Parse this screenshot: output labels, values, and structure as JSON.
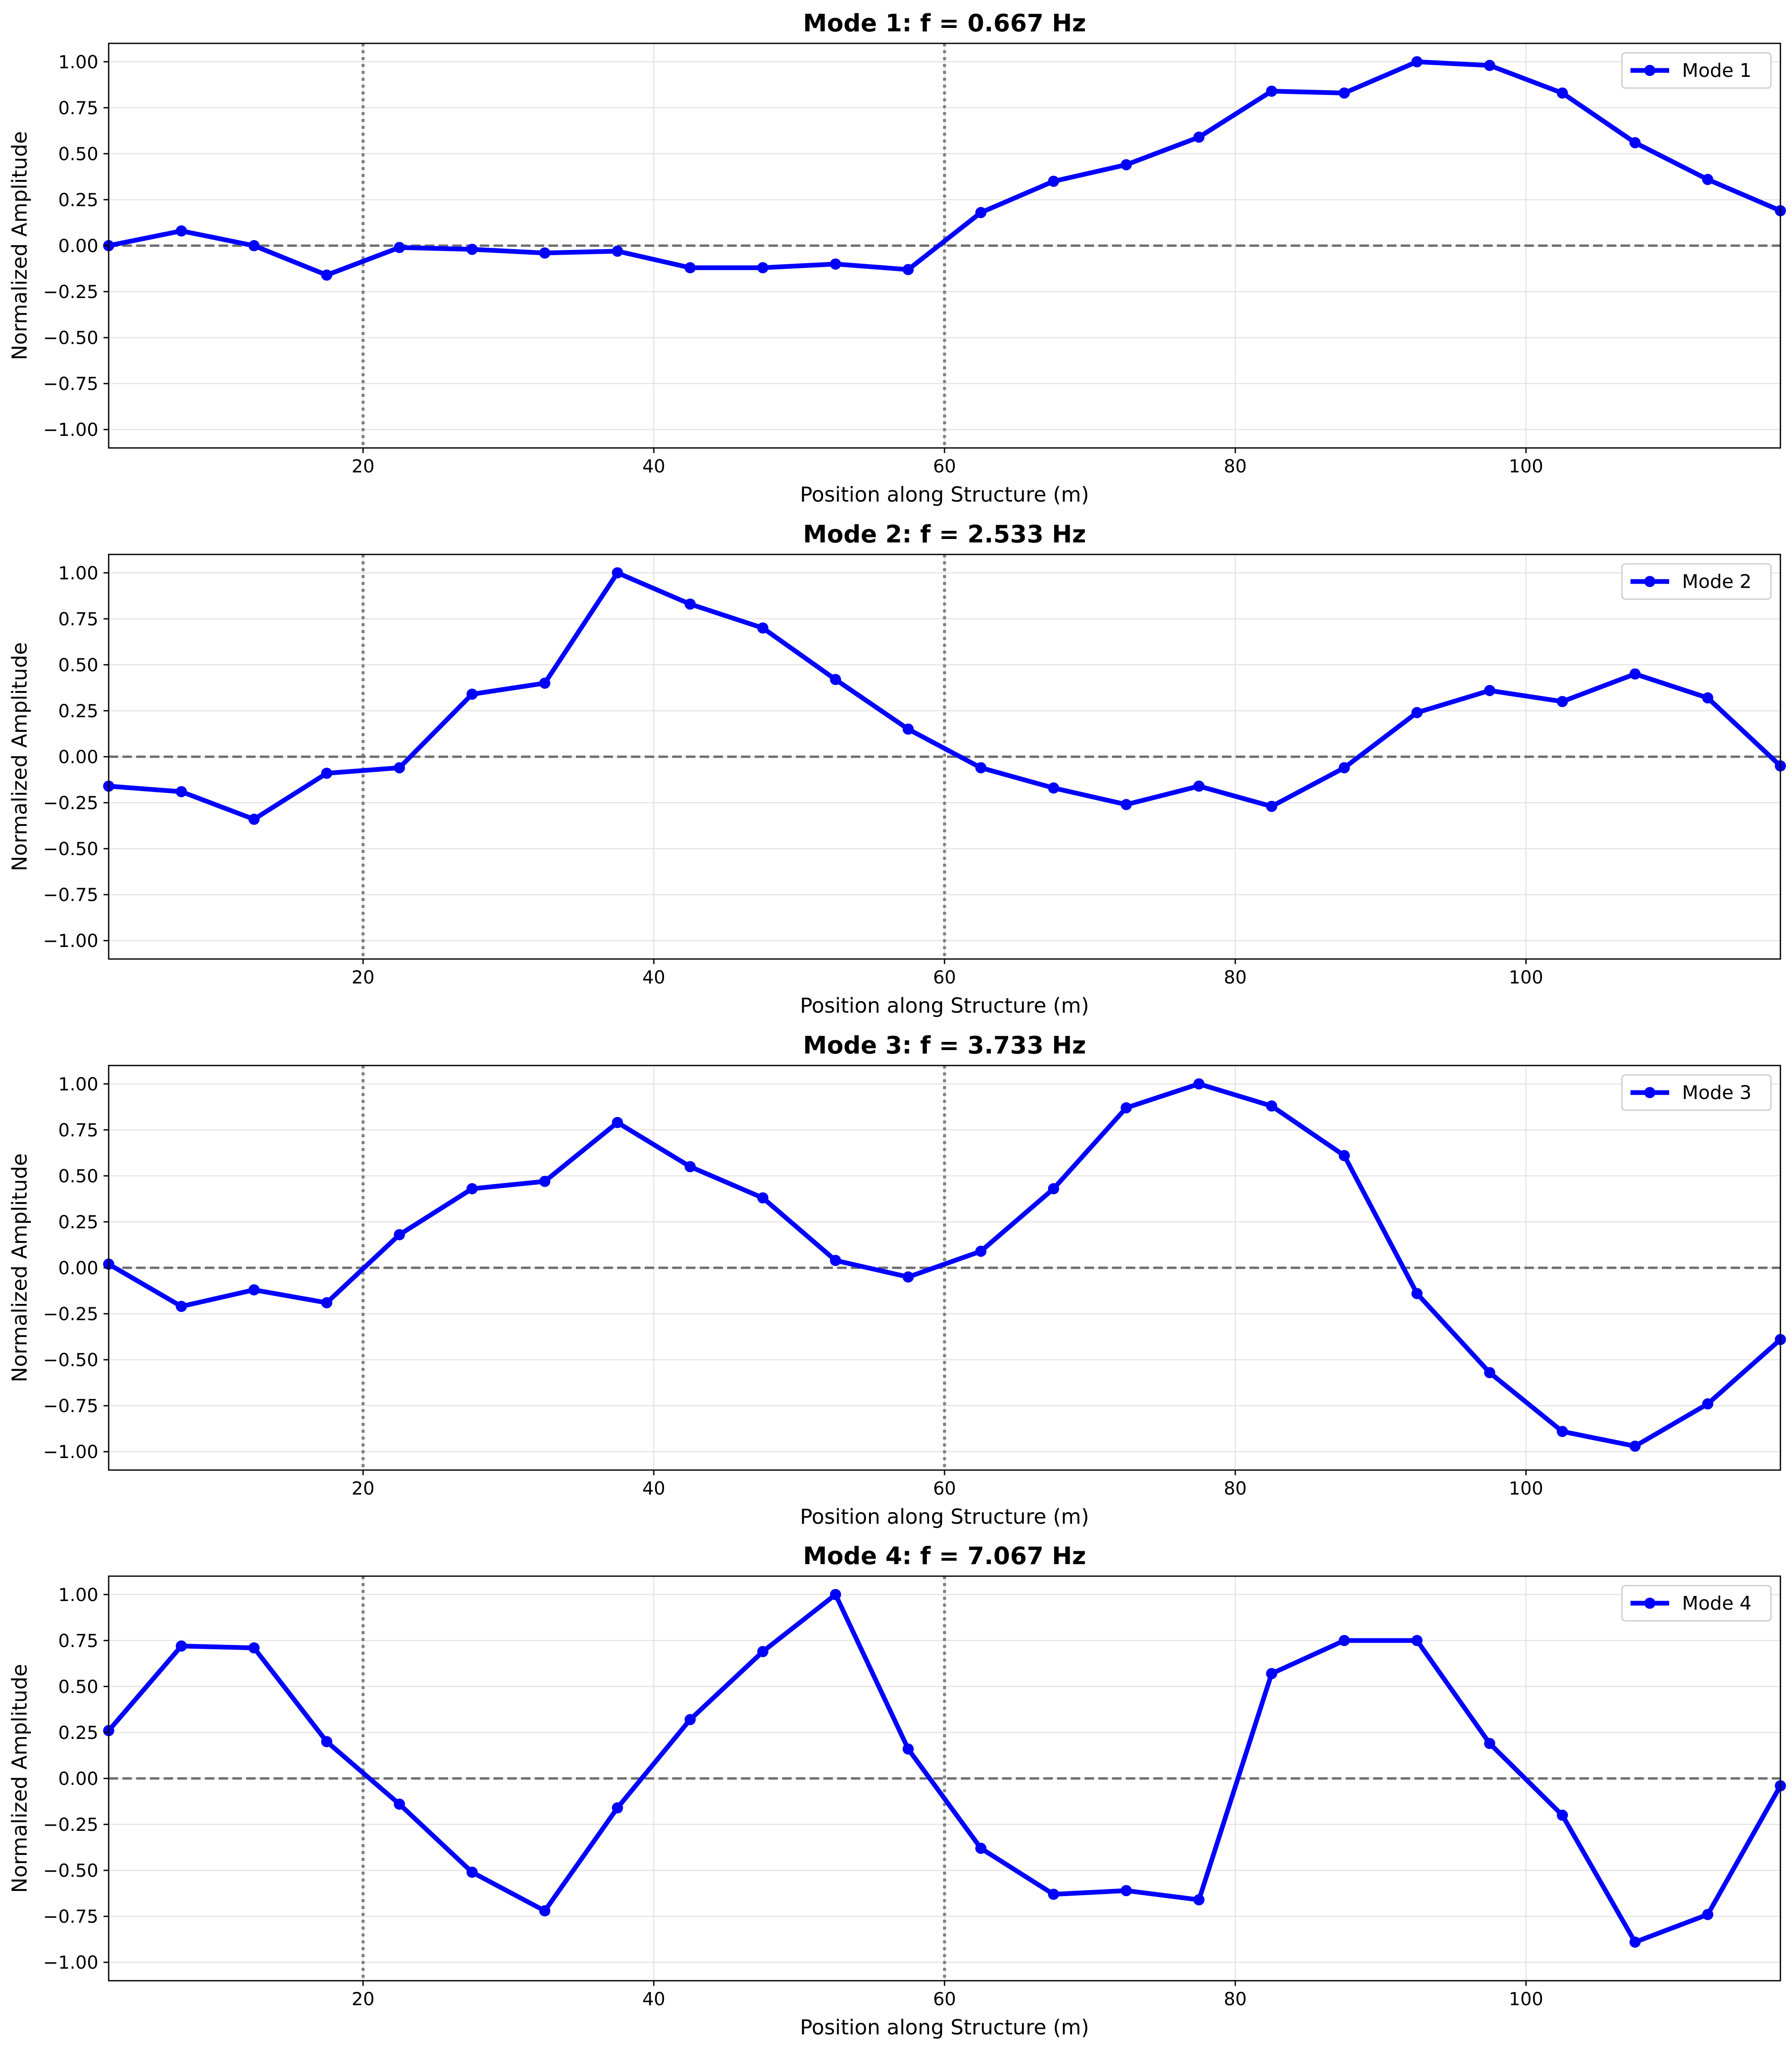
{
  "chart_data": [
    {
      "type": "line",
      "title": "Mode 1: f = 0.667 Hz",
      "xlabel": "Position along Structure (m)",
      "ylabel": "Normalized Amplitude",
      "xlim": [
        2.5,
        117.5
      ],
      "ylim": [
        -1.1,
        1.1
      ],
      "xticks": [
        20,
        40,
        60,
        80,
        100
      ],
      "xtick_labels": [
        "20",
        "40",
        "60",
        "80",
        "100"
      ],
      "yticks": [
        1.0,
        0.75,
        0.5,
        0.25,
        0.0,
        -0.25,
        -0.5,
        -0.75,
        -1.0
      ],
      "ytick_labels": [
        "1.00",
        "0.75",
        "0.50",
        "0.25",
        "0.00",
        "−0.25",
        "−0.50",
        "−0.75",
        "−1.00"
      ],
      "grid": true,
      "legend_position": "top-right",
      "vlines": [
        20,
        60
      ],
      "hline": 0,
      "series": [
        {
          "name": "Mode 1",
          "color": "#0000ff",
          "x": [
            2.5,
            7.5,
            12.5,
            17.5,
            22.5,
            27.5,
            32.5,
            37.5,
            42.5,
            47.5,
            52.5,
            57.5,
            62.5,
            67.5,
            72.5,
            77.5,
            82.5,
            87.5,
            92.5,
            97.5,
            102.5,
            107.5,
            112.5,
            117.5
          ],
          "y": [
            0.0,
            0.08,
            0.0,
            -0.16,
            -0.01,
            -0.02,
            -0.04,
            -0.03,
            -0.12,
            -0.12,
            -0.1,
            -0.13,
            0.18,
            0.35,
            0.44,
            0.59,
            0.84,
            0.83,
            1.0,
            0.98,
            0.83,
            0.56,
            0.36,
            0.19
          ]
        }
      ]
    },
    {
      "type": "line",
      "title": "Mode 2: f = 2.533 Hz",
      "xlabel": "Position along Structure (m)",
      "ylabel": "Normalized Amplitude",
      "xlim": [
        2.5,
        117.5
      ],
      "ylim": [
        -1.1,
        1.1
      ],
      "xticks": [
        20,
        40,
        60,
        80,
        100
      ],
      "xtick_labels": [
        "20",
        "40",
        "60",
        "80",
        "100"
      ],
      "yticks": [
        1.0,
        0.75,
        0.5,
        0.25,
        0.0,
        -0.25,
        -0.5,
        -0.75,
        -1.0
      ],
      "ytick_labels": [
        "1.00",
        "0.75",
        "0.50",
        "0.25",
        "0.00",
        "−0.25",
        "−0.50",
        "−0.75",
        "−1.00"
      ],
      "grid": true,
      "legend_position": "top-right",
      "vlines": [
        20,
        60
      ],
      "hline": 0,
      "series": [
        {
          "name": "Mode 2",
          "color": "#0000ff",
          "x": [
            2.5,
            7.5,
            12.5,
            17.5,
            22.5,
            27.5,
            32.5,
            37.5,
            42.5,
            47.5,
            52.5,
            57.5,
            62.5,
            67.5,
            72.5,
            77.5,
            82.5,
            87.5,
            92.5,
            97.5,
            102.5,
            107.5,
            112.5,
            117.5
          ],
          "y": [
            -0.16,
            -0.19,
            -0.34,
            -0.09,
            -0.06,
            0.34,
            0.4,
            1.0,
            0.83,
            0.7,
            0.42,
            0.15,
            -0.06,
            -0.17,
            -0.26,
            -0.16,
            -0.27,
            -0.06,
            0.24,
            0.36,
            0.3,
            0.45,
            0.32,
            -0.05
          ]
        }
      ]
    },
    {
      "type": "line",
      "title": "Mode 3: f = 3.733 Hz",
      "xlabel": "Position along Structure (m)",
      "ylabel": "Normalized Amplitude",
      "xlim": [
        2.5,
        117.5
      ],
      "ylim": [
        -1.1,
        1.1
      ],
      "xticks": [
        20,
        40,
        60,
        80,
        100
      ],
      "xtick_labels": [
        "20",
        "40",
        "60",
        "80",
        "100"
      ],
      "yticks": [
        1.0,
        0.75,
        0.5,
        0.25,
        0.0,
        -0.25,
        -0.5,
        -0.75,
        -1.0
      ],
      "ytick_labels": [
        "1.00",
        "0.75",
        "0.50",
        "0.25",
        "0.00",
        "−0.25",
        "−0.50",
        "−0.75",
        "−1.00"
      ],
      "grid": true,
      "legend_position": "top-right",
      "vlines": [
        20,
        60
      ],
      "hline": 0,
      "series": [
        {
          "name": "Mode 3",
          "color": "#0000ff",
          "x": [
            2.5,
            7.5,
            12.5,
            17.5,
            22.5,
            27.5,
            32.5,
            37.5,
            42.5,
            47.5,
            52.5,
            57.5,
            62.5,
            67.5,
            72.5,
            77.5,
            82.5,
            87.5,
            92.5,
            97.5,
            102.5,
            107.5,
            112.5,
            117.5
          ],
          "y": [
            0.02,
            -0.21,
            -0.12,
            -0.19,
            0.18,
            0.43,
            0.47,
            0.79,
            0.55,
            0.38,
            0.04,
            -0.05,
            0.09,
            0.43,
            0.87,
            1.0,
            0.88,
            0.61,
            -0.14,
            -0.57,
            -0.89,
            -0.97,
            -0.74,
            -0.39
          ]
        }
      ]
    },
    {
      "type": "line",
      "title": "Mode 4: f = 7.067 Hz",
      "xlabel": "Position along Structure (m)",
      "ylabel": "Normalized Amplitude",
      "xlim": [
        2.5,
        117.5
      ],
      "ylim": [
        -1.1,
        1.1
      ],
      "xticks": [
        20,
        40,
        60,
        80,
        100
      ],
      "xtick_labels": [
        "20",
        "40",
        "60",
        "80",
        "100"
      ],
      "yticks": [
        1.0,
        0.75,
        0.5,
        0.25,
        0.0,
        -0.25,
        -0.5,
        -0.75,
        -1.0
      ],
      "ytick_labels": [
        "1.00",
        "0.75",
        "0.50",
        "0.25",
        "0.00",
        "−0.25",
        "−0.50",
        "−0.75",
        "−1.00"
      ],
      "grid": true,
      "legend_position": "top-right",
      "vlines": [
        20,
        60
      ],
      "hline": 0,
      "series": [
        {
          "name": "Mode 4",
          "color": "#0000ff",
          "x": [
            2.5,
            7.5,
            12.5,
            17.5,
            22.5,
            27.5,
            32.5,
            37.5,
            42.5,
            47.5,
            52.5,
            57.5,
            62.5,
            67.5,
            72.5,
            77.5,
            82.5,
            87.5,
            92.5,
            97.5,
            102.5,
            107.5,
            112.5,
            117.5
          ],
          "y": [
            0.26,
            0.72,
            0.71,
            0.2,
            -0.14,
            -0.51,
            -0.72,
            -0.16,
            0.32,
            0.69,
            1.0,
            0.16,
            -0.38,
            -0.63,
            -0.61,
            -0.66,
            0.57,
            0.75,
            0.75,
            0.19,
            -0.2,
            -0.89,
            -0.74,
            -0.04
          ]
        }
      ]
    }
  ]
}
